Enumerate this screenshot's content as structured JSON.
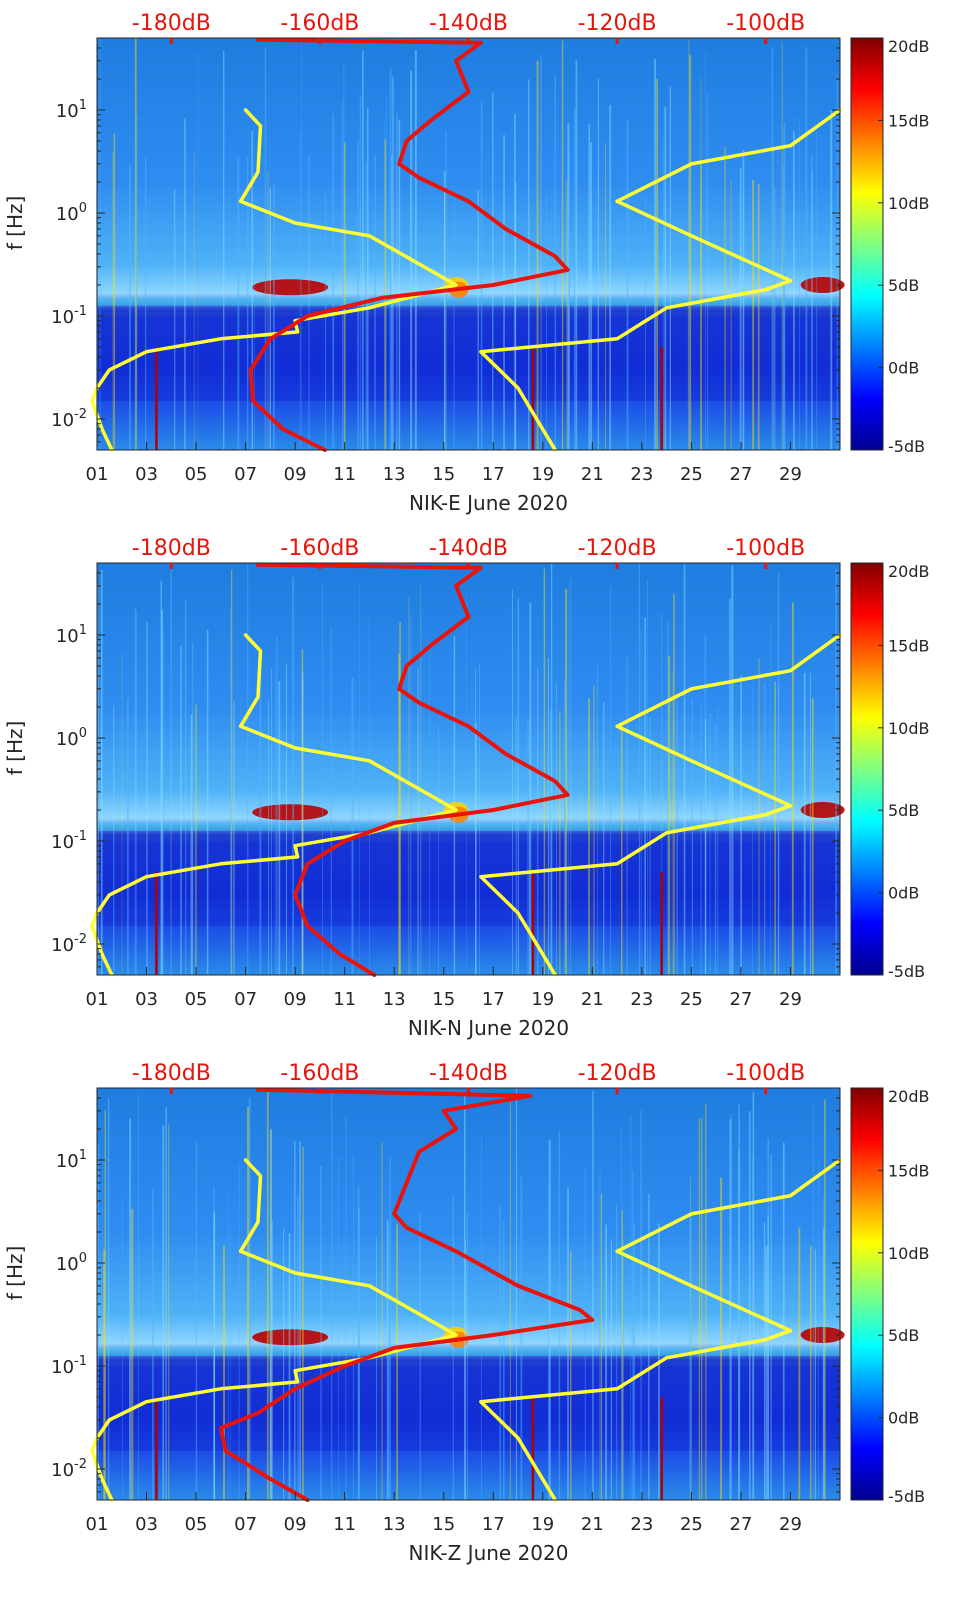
{
  "chart_data": [
    {
      "type": "heatmap",
      "title": "",
      "xlabel": "NIK-E June 2020",
      "ylabel": "f [Hz]",
      "x_tick_labels": [
        "01",
        "03",
        "05",
        "07",
        "09",
        "11",
        "13",
        "15",
        "17",
        "19",
        "21",
        "23",
        "25",
        "27",
        "29"
      ],
      "xlim_days": [
        1,
        31
      ],
      "ylim_hz": [
        0.005,
        50
      ],
      "y_tick_labels": [
        {
          "base": "10",
          "exp": "1",
          "value": 10
        },
        {
          "base": "10",
          "exp": "0",
          "value": 1
        },
        {
          "base": "10",
          "exp": "-1",
          "value": 0.1
        },
        {
          "base": "10",
          "exp": "-2",
          "value": 0.01
        }
      ],
      "top_axis_labels": [
        "-180dB",
        "-160dB",
        "-140dB",
        "-120dB",
        "-100dB"
      ],
      "top_axis_range_db": [
        -190,
        -90
      ],
      "colorbar": {
        "ticks": [
          "20dB",
          "15dB",
          "10dB",
          "5dB",
          "0dB",
          "-5dB"
        ],
        "range_db": [
          -5,
          20
        ]
      },
      "series": [
        {
          "name": "yellow-noise-model",
          "color": "#ffff33",
          "points": [
            [
              7.0,
              10
            ],
            [
              7.6,
              7
            ],
            [
              7.5,
              2.5
            ],
            [
              6.8,
              1.3
            ],
            [
              9,
              0.8
            ],
            [
              12,
              0.6
            ],
            [
              15.5,
              0.2
            ],
            [
              12,
              0.12
            ],
            [
              9,
              0.09
            ],
            [
              9.1,
              0.07
            ],
            [
              6,
              0.06
            ],
            [
              3,
              0.045
            ],
            [
              1.5,
              0.03
            ],
            [
              1.0,
              0.02
            ],
            [
              0.8,
              0.015
            ],
            [
              1.2,
              0.008
            ],
            [
              1.6,
              0.005
            ]
          ]
        },
        {
          "name": "yellow-noise-model-2",
          "color": "#ffff33",
          "points": [
            [
              31,
              10
            ],
            [
              29,
              4.5
            ],
            [
              25,
              3
            ],
            [
              22,
              1.3
            ],
            [
              25,
              0.6
            ],
            [
              29,
              0.22
            ],
            [
              28,
              0.18
            ],
            [
              24,
              0.12
            ],
            [
              22,
              0.06
            ],
            [
              18.5,
              0.05
            ],
            [
              16.5,
              0.045
            ],
            [
              18,
              0.02
            ],
            [
              19.5,
              0.005
            ]
          ]
        },
        {
          "name": "red-psd",
          "color": "#e8140c",
          "points": [
            [
              7.5,
              48
            ],
            [
              16.5,
              45
            ],
            [
              15.5,
              30
            ],
            [
              16,
              15
            ],
            [
              14.5,
              8
            ],
            [
              13.5,
              5
            ],
            [
              13.2,
              3
            ],
            [
              14,
              2.2
            ],
            [
              16,
              1.3
            ],
            [
              17.5,
              0.7
            ],
            [
              19.5,
              0.38
            ],
            [
              20,
              0.28
            ],
            [
              17,
              0.2
            ],
            [
              12.5,
              0.15
            ],
            [
              9.5,
              0.1
            ],
            [
              8,
              0.06
            ],
            [
              7.2,
              0.03
            ],
            [
              7.3,
              0.015
            ],
            [
              8.5,
              0.008
            ],
            [
              10.2,
              0.005
            ]
          ]
        }
      ]
    },
    {
      "type": "heatmap",
      "title": "",
      "xlabel": "NIK-N June 2020",
      "ylabel": "f [Hz]",
      "x_tick_labels": [
        "01",
        "03",
        "05",
        "07",
        "09",
        "11",
        "13",
        "15",
        "17",
        "19",
        "21",
        "23",
        "25",
        "27",
        "29"
      ],
      "xlim_days": [
        1,
        31
      ],
      "ylim_hz": [
        0.005,
        50
      ],
      "y_tick_labels": [
        {
          "base": "10",
          "exp": "1",
          "value": 10
        },
        {
          "base": "10",
          "exp": "0",
          "value": 1
        },
        {
          "base": "10",
          "exp": "-1",
          "value": 0.1
        },
        {
          "base": "10",
          "exp": "-2",
          "value": 0.01
        }
      ],
      "top_axis_labels": [
        "-180dB",
        "-160dB",
        "-140dB",
        "-120dB",
        "-100dB"
      ],
      "top_axis_range_db": [
        -190,
        -90
      ],
      "colorbar": {
        "ticks": [
          "20dB",
          "15dB",
          "10dB",
          "5dB",
          "0dB",
          "-5dB"
        ],
        "range_db": [
          -5,
          20
        ]
      },
      "series": [
        {
          "name": "yellow-noise-model",
          "color": "#ffff33",
          "points": [
            [
              7.0,
              10
            ],
            [
              7.6,
              7
            ],
            [
              7.5,
              2.5
            ],
            [
              6.8,
              1.3
            ],
            [
              9,
              0.8
            ],
            [
              12,
              0.6
            ],
            [
              15.5,
              0.2
            ],
            [
              12,
              0.12
            ],
            [
              9,
              0.09
            ],
            [
              9.1,
              0.07
            ],
            [
              6,
              0.06
            ],
            [
              3,
              0.045
            ],
            [
              1.5,
              0.03
            ],
            [
              1.0,
              0.02
            ],
            [
              0.8,
              0.015
            ],
            [
              1.2,
              0.008
            ],
            [
              1.6,
              0.005
            ]
          ]
        },
        {
          "name": "yellow-noise-model-2",
          "color": "#ffff33",
          "points": [
            [
              31,
              10
            ],
            [
              29,
              4.5
            ],
            [
              25,
              3
            ],
            [
              22,
              1.3
            ],
            [
              25,
              0.6
            ],
            [
              29,
              0.22
            ],
            [
              28,
              0.18
            ],
            [
              24,
              0.12
            ],
            [
              22,
              0.06
            ],
            [
              18.5,
              0.05
            ],
            [
              16.5,
              0.045
            ],
            [
              18,
              0.02
            ],
            [
              19.5,
              0.005
            ]
          ]
        },
        {
          "name": "red-psd",
          "color": "#e8140c",
          "points": [
            [
              7.5,
              48
            ],
            [
              16.5,
              45
            ],
            [
              15.5,
              30
            ],
            [
              16,
              15
            ],
            [
              14.5,
              8
            ],
            [
              13.5,
              5
            ],
            [
              13.2,
              3
            ],
            [
              14,
              2.2
            ],
            [
              16,
              1.3
            ],
            [
              17.5,
              0.7
            ],
            [
              19.5,
              0.38
            ],
            [
              20,
              0.28
            ],
            [
              17,
              0.2
            ],
            [
              13,
              0.15
            ],
            [
              11,
              0.1
            ],
            [
              9.5,
              0.06
            ],
            [
              9,
              0.03
            ],
            [
              9.5,
              0.015
            ],
            [
              10.8,
              0.008
            ],
            [
              12.2,
              0.005
            ]
          ]
        }
      ]
    },
    {
      "type": "heatmap",
      "title": "",
      "xlabel": "NIK-Z June 2020",
      "ylabel": "f [Hz]",
      "x_tick_labels": [
        "01",
        "03",
        "05",
        "07",
        "09",
        "11",
        "13",
        "15",
        "17",
        "19",
        "21",
        "23",
        "25",
        "27",
        "29"
      ],
      "xlim_days": [
        1,
        31
      ],
      "ylim_hz": [
        0.005,
        50
      ],
      "y_tick_labels": [
        {
          "base": "10",
          "exp": "1",
          "value": 10
        },
        {
          "base": "10",
          "exp": "0",
          "value": 1
        },
        {
          "base": "10",
          "exp": "-1",
          "value": 0.1
        },
        {
          "base": "10",
          "exp": "-2",
          "value": 0.01
        }
      ],
      "top_axis_labels": [
        "-180dB",
        "-160dB",
        "-140dB",
        "-120dB",
        "-100dB"
      ],
      "top_axis_range_db": [
        -190,
        -90
      ],
      "colorbar": {
        "ticks": [
          "20dB",
          "15dB",
          "10dB",
          "5dB",
          "0dB",
          "-5dB"
        ],
        "range_db": [
          -5,
          20
        ]
      },
      "series": [
        {
          "name": "yellow-noise-model",
          "color": "#ffff33",
          "points": [
            [
              7.0,
              10
            ],
            [
              7.6,
              7
            ],
            [
              7.5,
              2.5
            ],
            [
              6.8,
              1.3
            ],
            [
              9,
              0.8
            ],
            [
              12,
              0.6
            ],
            [
              15.5,
              0.2
            ],
            [
              12,
              0.12
            ],
            [
              9,
              0.09
            ],
            [
              9.1,
              0.07
            ],
            [
              6,
              0.06
            ],
            [
              3,
              0.045
            ],
            [
              1.5,
              0.03
            ],
            [
              1.0,
              0.02
            ],
            [
              0.8,
              0.015
            ],
            [
              1.2,
              0.008
            ],
            [
              1.6,
              0.005
            ]
          ]
        },
        {
          "name": "yellow-noise-model-2",
          "color": "#ffff33",
          "points": [
            [
              31,
              10
            ],
            [
              29,
              4.5
            ],
            [
              25,
              3
            ],
            [
              22,
              1.3
            ],
            [
              25,
              0.6
            ],
            [
              29,
              0.22
            ],
            [
              28,
              0.18
            ],
            [
              24,
              0.12
            ],
            [
              22,
              0.06
            ],
            [
              18.5,
              0.05
            ],
            [
              16.5,
              0.045
            ],
            [
              18,
              0.02
            ],
            [
              19.5,
              0.005
            ]
          ]
        },
        {
          "name": "red-psd",
          "color": "#e8140c",
          "points": [
            [
              7.5,
              48
            ],
            [
              18.5,
              42
            ],
            [
              15,
              30
            ],
            [
              15.5,
              20
            ],
            [
              14,
              12
            ],
            [
              13.5,
              6
            ],
            [
              13.0,
              3
            ],
            [
              13.5,
              2.2
            ],
            [
              15.5,
              1.3
            ],
            [
              18,
              0.6
            ],
            [
              20.5,
              0.35
            ],
            [
              21,
              0.28
            ],
            [
              17,
              0.2
            ],
            [
              13,
              0.15
            ],
            [
              11,
              0.1
            ],
            [
              9,
              0.06
            ],
            [
              7.5,
              0.035
            ],
            [
              6,
              0.025
            ],
            [
              6.2,
              0.015
            ],
            [
              8,
              0.008
            ],
            [
              9.5,
              0.005
            ]
          ]
        }
      ]
    }
  ]
}
